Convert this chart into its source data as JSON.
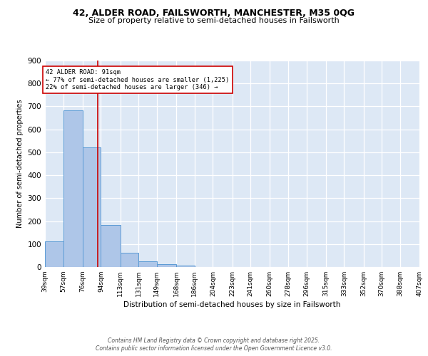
{
  "title1": "42, ALDER ROAD, FAILSWORTH, MANCHESTER, M35 0QG",
  "title2": "Size of property relative to semi-detached houses in Failsworth",
  "xlabel": "Distribution of semi-detached houses by size in Failsworth",
  "ylabel": "Number of semi-detached properties",
  "bar_edges": [
    39,
    57,
    76,
    94,
    113,
    131,
    149,
    168,
    186,
    204,
    223,
    241,
    260,
    278,
    296,
    315,
    333,
    352,
    370,
    388,
    407
  ],
  "bar_heights": [
    113,
    682,
    520,
    182,
    63,
    26,
    11,
    7,
    0,
    0,
    0,
    0,
    0,
    0,
    0,
    0,
    0,
    0,
    0,
    0
  ],
  "bar_color": "#aec6e8",
  "bar_edge_color": "#5b9bd5",
  "property_size": 91,
  "vline_color": "#cc0000",
  "annotation_text": "42 ALDER ROAD: 91sqm\n← 77% of semi-detached houses are smaller (1,225)\n22% of semi-detached houses are larger (346) →",
  "annotation_box_color": "#ffffff",
  "annotation_box_edge": "#cc0000",
  "ylim": [
    0,
    900
  ],
  "yticks": [
    0,
    100,
    200,
    300,
    400,
    500,
    600,
    700,
    800,
    900
  ],
  "bg_color": "#dde8f5",
  "footer_text": "Contains HM Land Registry data © Crown copyright and database right 2025.\nContains public sector information licensed under the Open Government Licence v3.0.",
  "tick_labels": [
    "39sqm",
    "57sqm",
    "76sqm",
    "94sqm",
    "113sqm",
    "131sqm",
    "149sqm",
    "168sqm",
    "186sqm",
    "204sqm",
    "223sqm",
    "241sqm",
    "260sqm",
    "278sqm",
    "296sqm",
    "315sqm",
    "333sqm",
    "352sqm",
    "370sqm",
    "388sqm",
    "407sqm"
  ]
}
